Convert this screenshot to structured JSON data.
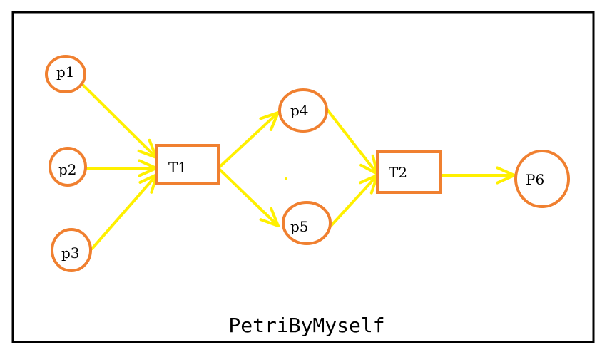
{
  "diagram": {
    "caption": "PetriByMyself",
    "colors": {
      "frame": "#000000",
      "node": "#F08030",
      "arc": "#FFF000",
      "text": "#000000"
    },
    "places": [
      {
        "id": "p1",
        "label": "p1"
      },
      {
        "id": "p2",
        "label": "p2"
      },
      {
        "id": "p3",
        "label": "p3"
      },
      {
        "id": "p4",
        "label": "p4"
      },
      {
        "id": "p5",
        "label": "p5"
      },
      {
        "id": "P6",
        "label": "P6"
      }
    ],
    "transitions": [
      {
        "id": "T1",
        "label": "T1"
      },
      {
        "id": "T2",
        "label": "T2"
      }
    ],
    "arcs": [
      {
        "from": "p1",
        "to": "T1"
      },
      {
        "from": "p2",
        "to": "T1"
      },
      {
        "from": "p3",
        "to": "T1"
      },
      {
        "from": "T1",
        "to": "p4"
      },
      {
        "from": "T1",
        "to": "p5"
      },
      {
        "from": "p4",
        "to": "T2"
      },
      {
        "from": "p5",
        "to": "T2"
      },
      {
        "from": "T2",
        "to": "P6"
      }
    ]
  }
}
